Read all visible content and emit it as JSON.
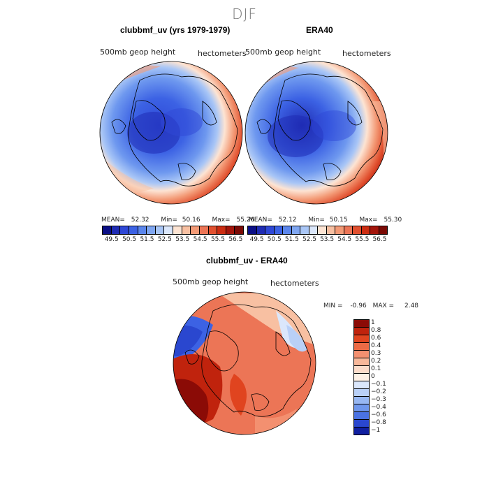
{
  "season_title": "DJF",
  "panels": [
    {
      "title": "clubbmf_uv (yrs 1979-1979)",
      "variable_label": "500mb geop height",
      "units_label": "hectometers",
      "stats": {
        "mean_label": "MEAN=",
        "mean": "52.32",
        "min_label": "Min=",
        "min": "50.16",
        "max_label": "Max=",
        "max": "55.26"
      }
    },
    {
      "title": "ERA40",
      "variable_label": "500mb geop height",
      "units_label": "hectometers",
      "stats": {
        "mean_label": "MEAN=",
        "mean": "52.12",
        "min_label": "Min=",
        "min": "50.15",
        "max_label": "Max=",
        "max": "55.30"
      }
    },
    {
      "title": "clubbmf_uv - ERA40",
      "variable_label": "500mb geop height",
      "units_label": "hectometers",
      "stats": {
        "min_label": "MIN =",
        "min": "-0.96",
        "max_label": "MAX =",
        "max": "2.48"
      }
    }
  ],
  "colorbar_horizontal": {
    "ticks": [
      "49.5",
      "50.5",
      "51.5",
      "52.5",
      "53.5",
      "54.5",
      "55.5",
      "56.5"
    ],
    "colors": [
      "#0b0f86",
      "#1f2cb4",
      "#2f48d6",
      "#3c62e4",
      "#5b86ec",
      "#7fa6f1",
      "#a9c6f6",
      "#dbe7fb",
      "#fde4d3",
      "#f8c0a2",
      "#f39a76",
      "#ec7556",
      "#e1502f",
      "#cc2d12",
      "#a3150b",
      "#7a0a05"
    ]
  },
  "colorbar_vertical": {
    "ticks": [
      "1",
      "0.8",
      "0.6",
      "0.4",
      "0.3",
      "0.2",
      "0.1",
      "0",
      "−0.1",
      "−0.2",
      "−0.3",
      "−0.4",
      "−0.6",
      "−0.8",
      "−1"
    ],
    "colors": [
      "#8b0b06",
      "#c0230d",
      "#e0441f",
      "#ec6a45",
      "#f39070",
      "#f8b89a",
      "#fcdcca",
      "#fdf1e6",
      "#dbe7fb",
      "#b9d0f7",
      "#97b7f2",
      "#6f97ec",
      "#4a72e3",
      "#2a47cf",
      "#101fa0"
    ]
  },
  "chart_data": [
    {
      "type": "heatmap",
      "title": "clubbmf_uv (yrs 1979-1979)",
      "subtitle": "500mb geop height",
      "units": "hectometers",
      "projection": "north polar stereographic",
      "mean": 52.32,
      "min": 50.16,
      "max": 55.26,
      "levels": [
        49.5,
        50.5,
        51.5,
        52.5,
        53.5,
        54.5,
        55.5,
        56.5
      ]
    },
    {
      "type": "heatmap",
      "title": "ERA40",
      "subtitle": "500mb geop height",
      "units": "hectometers",
      "projection": "north polar stereographic",
      "mean": 52.12,
      "min": 50.15,
      "max": 55.3,
      "levels": [
        49.5,
        50.5,
        51.5,
        52.5,
        53.5,
        54.5,
        55.5,
        56.5
      ]
    },
    {
      "type": "heatmap",
      "title": "clubbmf_uv - ERA40",
      "subtitle": "500mb geop height",
      "units": "hectometers",
      "projection": "north polar stereographic",
      "min": -0.96,
      "max": 2.48,
      "levels": [
        -1,
        -0.8,
        -0.6,
        -0.4,
        -0.3,
        -0.2,
        -0.1,
        0,
        0.1,
        0.2,
        0.3,
        0.4,
        0.6,
        0.8,
        1
      ]
    }
  ]
}
